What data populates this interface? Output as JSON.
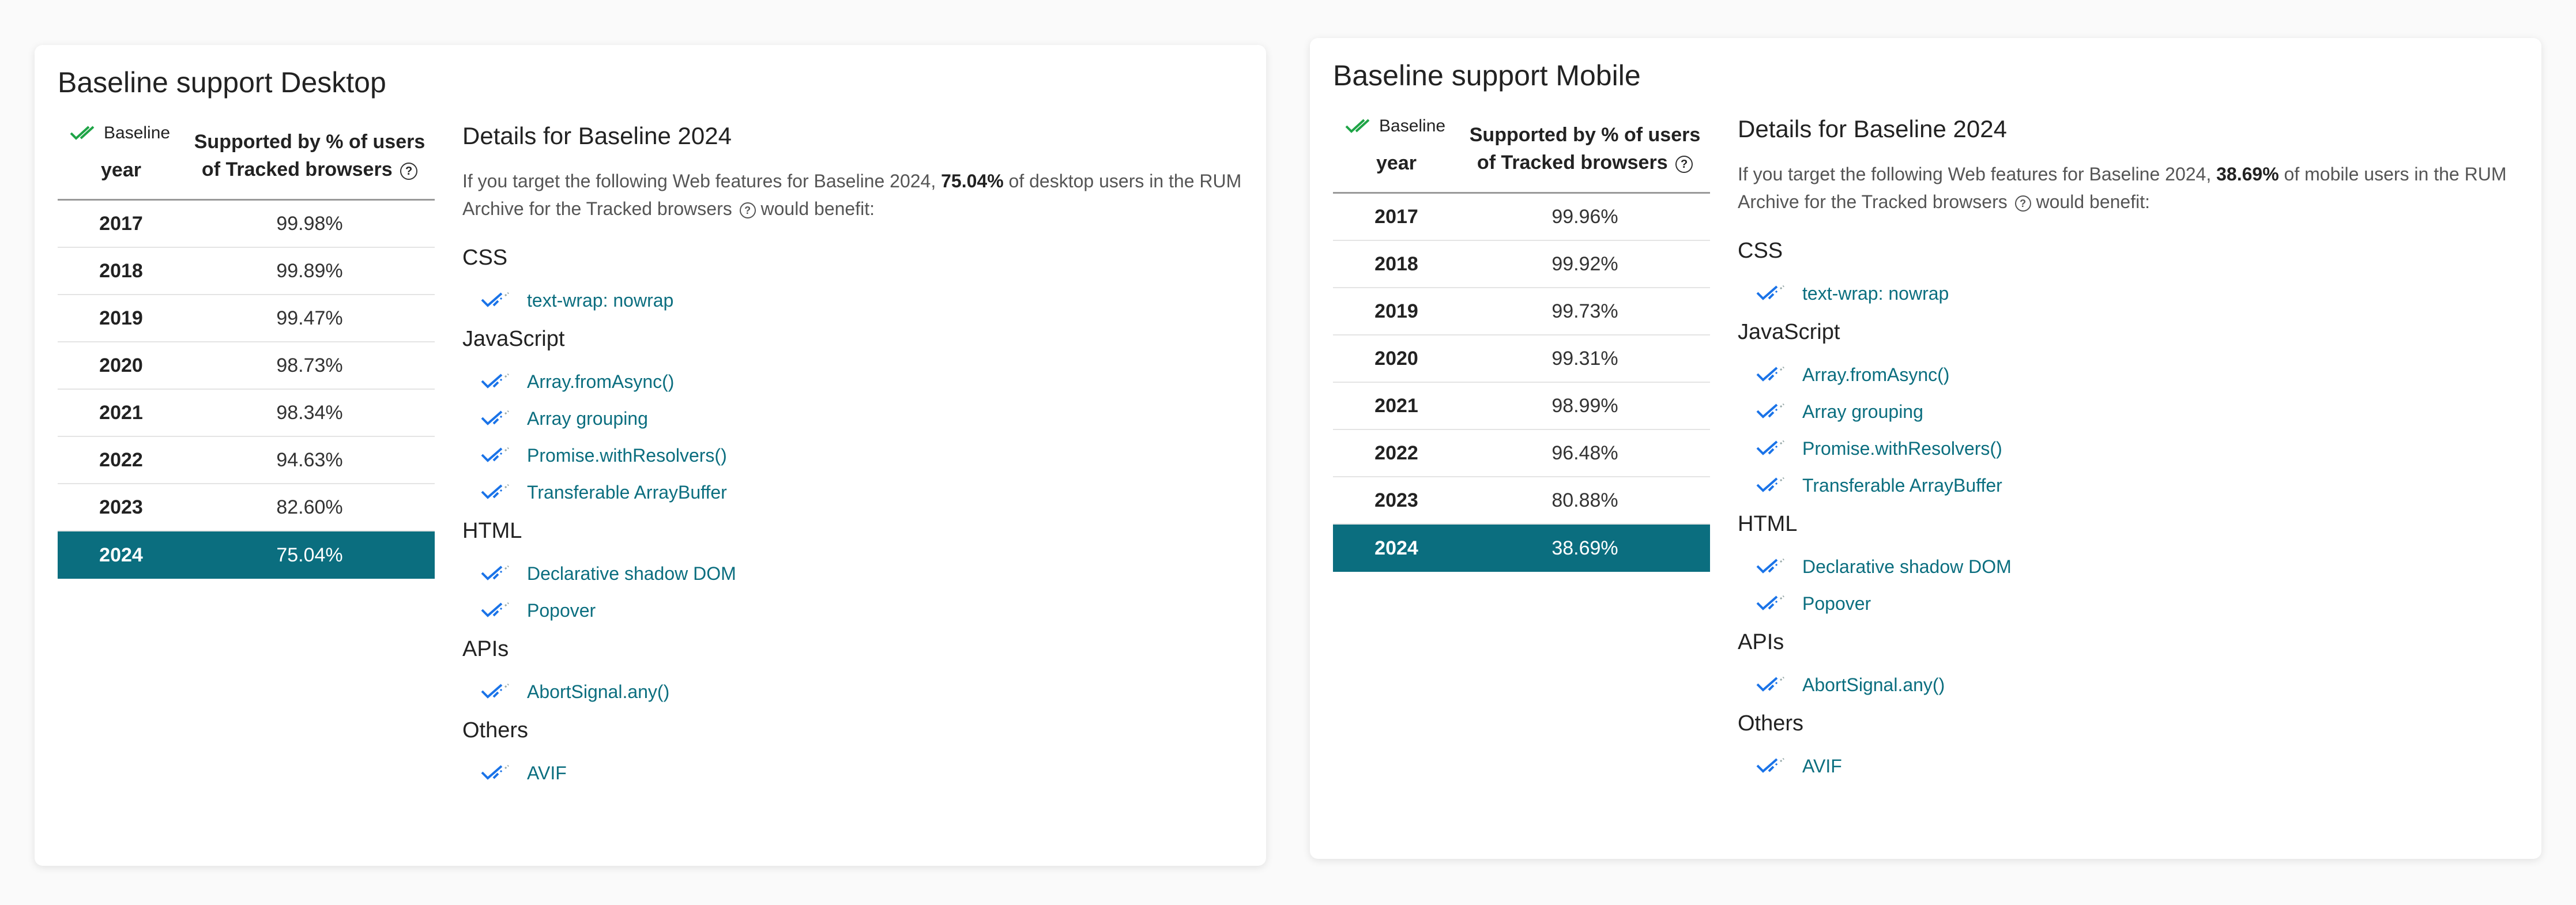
{
  "desktop": {
    "title": "Baseline support Desktop",
    "table": {
      "baseline_label": "Baseline",
      "year_header": "year",
      "pct_header_line1": "Supported by % of users",
      "pct_header_line2": "of Tracked browsers",
      "rows": [
        {
          "year": "2017",
          "pct": "99.98%"
        },
        {
          "year": "2018",
          "pct": "99.89%"
        },
        {
          "year": "2019",
          "pct": "99.47%"
        },
        {
          "year": "2020",
          "pct": "98.73%"
        },
        {
          "year": "2021",
          "pct": "98.34%"
        },
        {
          "year": "2022",
          "pct": "94.63%"
        },
        {
          "year": "2023",
          "pct": "82.60%"
        },
        {
          "year": "2024",
          "pct": "75.04%"
        }
      ]
    },
    "details": {
      "title": "Details for Baseline 2024",
      "text_before": "If you target the following Web features for Baseline 2024, ",
      "highlight": "75.04%",
      "text_after": " of desktop users in the RUM Archive for the Tracked browsers",
      "text_end": " would benefit:",
      "groups": [
        {
          "name": "CSS",
          "features": [
            "text-wrap: nowrap"
          ]
        },
        {
          "name": "JavaScript",
          "features": [
            "Array.fromAsync()",
            "Array grouping",
            "Promise.withResolvers()",
            "Transferable ArrayBuffer"
          ]
        },
        {
          "name": "HTML",
          "features": [
            "Declarative shadow DOM",
            "Popover"
          ]
        },
        {
          "name": "APIs",
          "features": [
            "AbortSignal.any()"
          ]
        },
        {
          "name": "Others",
          "features": [
            "AVIF"
          ]
        }
      ]
    }
  },
  "mobile": {
    "title": "Baseline support Mobile",
    "table": {
      "baseline_label": "Baseline",
      "year_header": "year",
      "pct_header_line1": "Supported by % of users",
      "pct_header_line2": "of Tracked browsers",
      "rows": [
        {
          "year": "2017",
          "pct": "99.96%"
        },
        {
          "year": "2018",
          "pct": "99.92%"
        },
        {
          "year": "2019",
          "pct": "99.73%"
        },
        {
          "year": "2020",
          "pct": "99.31%"
        },
        {
          "year": "2021",
          "pct": "98.99%"
        },
        {
          "year": "2022",
          "pct": "96.48%"
        },
        {
          "year": "2023",
          "pct": "80.88%"
        },
        {
          "year": "2024",
          "pct": "38.69%"
        }
      ]
    },
    "details": {
      "title": "Details for Baseline 2024",
      "text_before": "If you target the following Web features for Baseline 2024, ",
      "highlight": "38.69%",
      "text_after": " of mobile users in the RUM Archive for the Tracked browsers",
      "text_end": " would benefit:",
      "groups": [
        {
          "name": "CSS",
          "features": [
            "text-wrap: nowrap"
          ]
        },
        {
          "name": "JavaScript",
          "features": [
            "Array.fromAsync()",
            "Array grouping",
            "Promise.withResolvers()",
            "Transferable ArrayBuffer"
          ]
        },
        {
          "name": "HTML",
          "features": [
            "Declarative shadow DOM",
            "Popover"
          ]
        },
        {
          "name": "APIs",
          "features": [
            "AbortSignal.any()"
          ]
        },
        {
          "name": "Others",
          "features": [
            "AVIF"
          ]
        }
      ]
    }
  },
  "help_glyph": "?",
  "colors": {
    "accent": "#0b6e7f",
    "baseline_check": "#1ea446",
    "feature_check": "#1a73e8"
  },
  "selected_year": "2024",
  "icons": {
    "baseline": "baseline-check-icon",
    "feature": "baseline-newly-available-icon",
    "help": "help-circle-icon"
  }
}
